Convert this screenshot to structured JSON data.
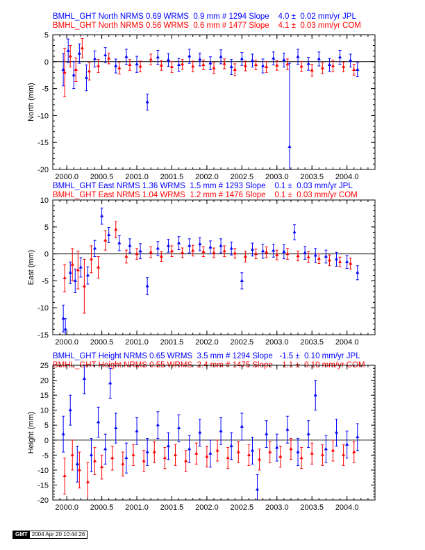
{
  "panels": [
    {
      "station": "BMHL_GHT",
      "component": "North",
      "jpl_line": "BMHL_GHT North NRMS 0.69 WRMS  0.9 mm # 1294 Slope    4.0 ±  0.02 mm/yr JPL",
      "com_line": "BMHL_GHT North NRMS 0.56 WRMS  0.6 mm # 1477 Slope    4.1 ±  0.03 mm/yr COM"
    },
    {
      "station": "BMHL_GHT",
      "component": "East",
      "jpl_line": "BMHL_GHT East NRMS 1.36 WRMS  1.5 mm # 1293 Slope    0.1 ±  0.03 mm/yr JPL",
      "com_line": "BMHL_GHT East NRMS 1.04 WRMS  1.2 mm # 1476 Slope    0.1 ±  0.03 mm/yr COM"
    },
    {
      "station": "BMHL_GHT",
      "component": "Height",
      "jpl_line": "BMHL_GHT Height NRMS 0.65 WRMS  3.5 mm # 1294 Slope   -1.5 ±  0.10 mm/yr JPL",
      "com_line": "BMHL_GHT Height NRMS 0.55 WRMS  2.4 mm # 1475 Slope   -1.1 ±  0.10 mm/yr COM"
    }
  ],
  "colors": {
    "jpl": "#0000ff",
    "com": "#ff0000",
    "axis": "#000000",
    "zero_line": "#000000"
  },
  "stamp": {
    "logo": "GMT",
    "timestamp": "2004 Apr 20 10:44:26"
  },
  "chart_data": [
    {
      "type": "scatter",
      "ylabel": "North (mm)",
      "xlim": [
        1999.8,
        2004.4
      ],
      "ylim": [
        -20,
        5
      ],
      "xticks": [
        2000.0,
        2000.5,
        2001.0,
        2001.5,
        2002.0,
        2002.5,
        2003.0,
        2003.5,
        2004.0
      ],
      "xticklabels": [
        "2000.0",
        "2000.5",
        "2001.0",
        "2001.5",
        "2002.0",
        "2002.5",
        "2003.0",
        "2003.5",
        "2004.0"
      ],
      "yticks": [
        5,
        0,
        -5,
        -10,
        -15,
        -20
      ],
      "yticklabels": [
        "5",
        "0",
        "-5",
        "-10",
        "-15",
        "-20"
      ],
      "error_bars": true,
      "series": [
        {
          "name": "JPL",
          "x": [
            1999.95,
            2000.02,
            2000.1,
            2000.18,
            2000.28,
            2000.4,
            2000.55,
            2000.7,
            2000.85,
            2001.0,
            2001.15,
            2001.3,
            2001.45,
            2001.6,
            2001.75,
            2001.9,
            2002.05,
            2002.2,
            2002.35,
            2002.5,
            2002.65,
            2002.8,
            2002.95,
            2003.1,
            2003.18,
            2003.3,
            2003.45,
            2003.6,
            2003.75,
            2003.9,
            2004.05,
            2004.15
          ],
          "y": [
            -1.5,
            2.0,
            -2.5,
            1.5,
            -3.0,
            0.5,
            1.2,
            -0.8,
            0.9,
            -0.5,
            -7.5,
            0.8,
            0.3,
            -0.6,
            1.0,
            0.4,
            -0.3,
            0.9,
            -1.0,
            0.5,
            0.2,
            -0.8,
            0.6,
            0.3,
            -15.8,
            0.9,
            -0.4,
            0.5,
            -0.6,
            0.8,
            0.2,
            -1.5
          ],
          "err": [
            3.0,
            2.2,
            2.5,
            1.8,
            2.4,
            1.5,
            1.4,
            1.3,
            1.4,
            1.5,
            1.5,
            1.3,
            1.2,
            1.2,
            1.3,
            1.2,
            1.2,
            1.3,
            1.4,
            1.2,
            1.2,
            1.3,
            1.2,
            1.3,
            15.5,
            1.4,
            1.2,
            1.3,
            1.2,
            1.3,
            1.2,
            1.3
          ]
        },
        {
          "name": "COM",
          "x": [
            1999.97,
            2000.05,
            2000.13,
            2000.22,
            2000.32,
            2000.45,
            2000.6,
            2000.75,
            2000.9,
            2001.05,
            2001.2,
            2001.35,
            2001.5,
            2001.65,
            2001.8,
            2001.95,
            2002.1,
            2002.25,
            2002.4,
            2002.55,
            2002.7,
            2002.85,
            2003.0,
            2003.15,
            2003.35,
            2003.5,
            2003.65,
            2003.8,
            2003.95,
            2004.1
          ],
          "y": [
            -2.0,
            1.0,
            -1.5,
            2.5,
            -1.8,
            -0.8,
            0.6,
            -1.2,
            -0.6,
            -0.9,
            0.4,
            -0.7,
            -1.0,
            -0.5,
            -0.9,
            -0.6,
            -1.2,
            -0.4,
            -1.5,
            -0.8,
            -0.6,
            -1.0,
            -0.7,
            -0.5,
            -0.9,
            -1.6,
            -1.2,
            -0.8,
            -1.0,
            -1.5
          ],
          "err": [
            4.5,
            2.0,
            2.2,
            1.8,
            1.6,
            1.2,
            1.0,
            1.1,
            1.0,
            1.0,
            1.0,
            0.9,
            1.0,
            0.9,
            1.0,
            0.9,
            1.0,
            0.9,
            1.1,
            0.9,
            0.9,
            1.0,
            0.9,
            1.0,
            0.9,
            1.1,
            1.0,
            1.1,
            0.9,
            1.0
          ]
        }
      ]
    },
    {
      "type": "scatter",
      "ylabel": "East (mm)",
      "xlim": [
        1999.8,
        2004.4
      ],
      "ylim": [
        -15,
        10
      ],
      "xticks": [
        2000.0,
        2000.5,
        2001.0,
        2001.5,
        2002.0,
        2002.5,
        2003.0,
        2003.5,
        2004.0
      ],
      "xticklabels": [
        "2000.0",
        "2000.5",
        "2001.0",
        "2001.5",
        "2002.0",
        "2002.5",
        "2003.0",
        "2003.5",
        "2004.0"
      ],
      "yticks": [
        10,
        5,
        0,
        -5,
        -10,
        -15
      ],
      "yticklabels": [
        "10",
        "5",
        "0",
        "-5",
        "-10",
        "-15"
      ],
      "error_bars": true,
      "series": [
        {
          "name": "JPL",
          "x": [
            1999.95,
            1999.98,
            2000.05,
            2000.12,
            2000.2,
            2000.3,
            2000.4,
            2000.5,
            2000.6,
            2000.75,
            2000.9,
            2001.05,
            2001.15,
            2001.3,
            2001.45,
            2001.6,
            2001.75,
            2001.9,
            2002.05,
            2002.2,
            2002.35,
            2002.5,
            2002.65,
            2002.8,
            2002.95,
            2003.1,
            2003.25,
            2003.4,
            2003.55,
            2003.7,
            2003.85,
            2004.0,
            2004.15
          ],
          "y": [
            -12.0,
            -14.0,
            -3.5,
            -5.0,
            -2.5,
            -4.0,
            1.0,
            7.0,
            3.5,
            2.0,
            1.5,
            0.5,
            -6.0,
            1.0,
            1.5,
            2.0,
            1.5,
            1.8,
            1.2,
            1.5,
            1.0,
            -5.0,
            0.8,
            0.5,
            0.6,
            0.4,
            4.0,
            0.2,
            -0.3,
            -0.5,
            -1.0,
            -1.5,
            -3.5
          ],
          "err": [
            2.5,
            2.0,
            2.0,
            2.2,
            1.8,
            1.6,
            1.5,
            1.5,
            1.4,
            1.4,
            1.3,
            1.4,
            1.6,
            1.3,
            1.2,
            1.2,
            1.3,
            1.2,
            1.2,
            1.3,
            1.2,
            1.5,
            1.2,
            1.3,
            1.2,
            1.3,
            1.4,
            1.2,
            1.3,
            1.2,
            1.3,
            1.2,
            1.3
          ]
        },
        {
          "name": "COM",
          "x": [
            1999.97,
            2000.08,
            2000.16,
            2000.25,
            2000.35,
            2000.45,
            2000.55,
            2000.7,
            2000.85,
            2001.0,
            2001.2,
            2001.35,
            2001.5,
            2001.65,
            2001.8,
            2001.95,
            2002.1,
            2002.25,
            2002.4,
            2002.55,
            2002.7,
            2002.85,
            2003.0,
            2003.15,
            2003.3,
            2003.45,
            2003.6,
            2003.75,
            2003.9,
            2004.05
          ],
          "y": [
            -4.5,
            -2.0,
            -3.0,
            -6.0,
            -1.0,
            -2.5,
            2.5,
            4.5,
            -0.5,
            0.0,
            0.3,
            -0.5,
            0.5,
            0.2,
            0.6,
            0.4,
            0.2,
            0.5,
            0.1,
            -0.5,
            0.0,
            0.3,
            -0.2,
            0.0,
            -0.4,
            -0.6,
            -0.9,
            -1.2,
            -1.5,
            -1.8
          ],
          "err": [
            2.5,
            3.0,
            3.5,
            5.0,
            2.5,
            2.0,
            1.8,
            1.5,
            1.2,
            1.0,
            1.0,
            0.9,
            1.0,
            0.9,
            1.0,
            0.9,
            0.9,
            1.0,
            0.9,
            1.0,
            0.9,
            1.0,
            0.9,
            1.0,
            0.9,
            1.0,
            0.9,
            1.0,
            0.9,
            1.0
          ]
        }
      ]
    },
    {
      "type": "scatter",
      "ylabel": "Height (mm)",
      "xlim": [
        1999.8,
        2004.4
      ],
      "ylim": [
        -20,
        25
      ],
      "xticks": [
        2000.0,
        2000.5,
        2001.0,
        2001.5,
        2002.0,
        2002.5,
        2003.0,
        2003.5,
        2004.0
      ],
      "xticklabels": [
        "2000.0",
        "2000.5",
        "2001.0",
        "2001.5",
        "2002.0",
        "2002.5",
        "2003.0",
        "2003.5",
        "2004.0"
      ],
      "yticks": [
        25,
        20,
        15,
        10,
        5,
        0,
        -5,
        -10,
        -15,
        -20
      ],
      "yticklabels": [
        "25",
        "20",
        "15",
        "10",
        "5",
        "0",
        "-5",
        "-10",
        "-15",
        "-20"
      ],
      "error_bars": true,
      "series": [
        {
          "name": "JPL",
          "x": [
            1999.95,
            2000.05,
            2000.15,
            2000.25,
            2000.35,
            2000.45,
            2000.55,
            2000.62,
            2000.7,
            2000.85,
            2001.0,
            2001.15,
            2001.3,
            2001.45,
            2001.6,
            2001.75,
            2001.9,
            2002.05,
            2002.2,
            2002.35,
            2002.5,
            2002.65,
            2002.72,
            2002.85,
            2003.0,
            2003.15,
            2003.3,
            2003.45,
            2003.55,
            2003.7,
            2003.85,
            2004.0,
            2004.15
          ],
          "y": [
            2.0,
            10.0,
            -8.0,
            20.5,
            -5.0,
            6.0,
            -3.0,
            19.0,
            4.0,
            -6.0,
            3.0,
            -4.0,
            5.0,
            -2.0,
            4.0,
            -3.0,
            2.5,
            -4.5,
            3.0,
            -2.0,
            4.5,
            -3.5,
            -16.5,
            2.0,
            -2.5,
            3.5,
            -4.0,
            2.0,
            15.0,
            -3.0,
            2.5,
            -1.5,
            1.0
          ],
          "err": [
            6.0,
            5.0,
            6.0,
            5.0,
            5.5,
            5.0,
            5.0,
            5.0,
            5.0,
            5.0,
            4.5,
            4.5,
            4.5,
            4.5,
            4.5,
            4.5,
            4.5,
            4.5,
            4.5,
            4.5,
            4.5,
            4.5,
            5.0,
            4.5,
            4.5,
            4.5,
            4.5,
            4.5,
            5.0,
            4.5,
            4.5,
            4.5,
            4.5
          ]
        },
        {
          "name": "COM",
          "x": [
            1999.97,
            2000.08,
            2000.18,
            2000.3,
            2000.4,
            2000.5,
            2000.65,
            2000.8,
            2000.95,
            2001.1,
            2001.25,
            2001.4,
            2001.55,
            2001.7,
            2001.85,
            2002.0,
            2002.15,
            2002.3,
            2002.45,
            2002.6,
            2002.75,
            2002.9,
            2003.05,
            2003.2,
            2003.35,
            2003.5,
            2003.65,
            2003.8,
            2003.95,
            2004.1
          ],
          "y": [
            -12.0,
            -5.0,
            -10.0,
            -14.0,
            -7.0,
            -9.0,
            -6.0,
            -8.0,
            -5.0,
            -7.0,
            -4.0,
            -6.0,
            -5.0,
            -7.0,
            -4.5,
            -5.5,
            -3.5,
            -6.0,
            -4.0,
            -5.0,
            -6.5,
            -4.0,
            -5.5,
            -3.0,
            -6.0,
            -4.5,
            -5.0,
            -3.5,
            -5.0,
            -4.0
          ],
          "err": [
            6.0,
            5.0,
            6.0,
            6.5,
            4.5,
            4.0,
            4.0,
            4.0,
            3.5,
            3.5,
            3.5,
            3.5,
            3.5,
            3.5,
            3.5,
            3.5,
            3.5,
            3.5,
            3.5,
            3.5,
            3.5,
            3.5,
            3.5,
            3.5,
            3.5,
            3.5,
            3.5,
            3.5,
            3.5,
            3.5
          ]
        }
      ]
    }
  ]
}
